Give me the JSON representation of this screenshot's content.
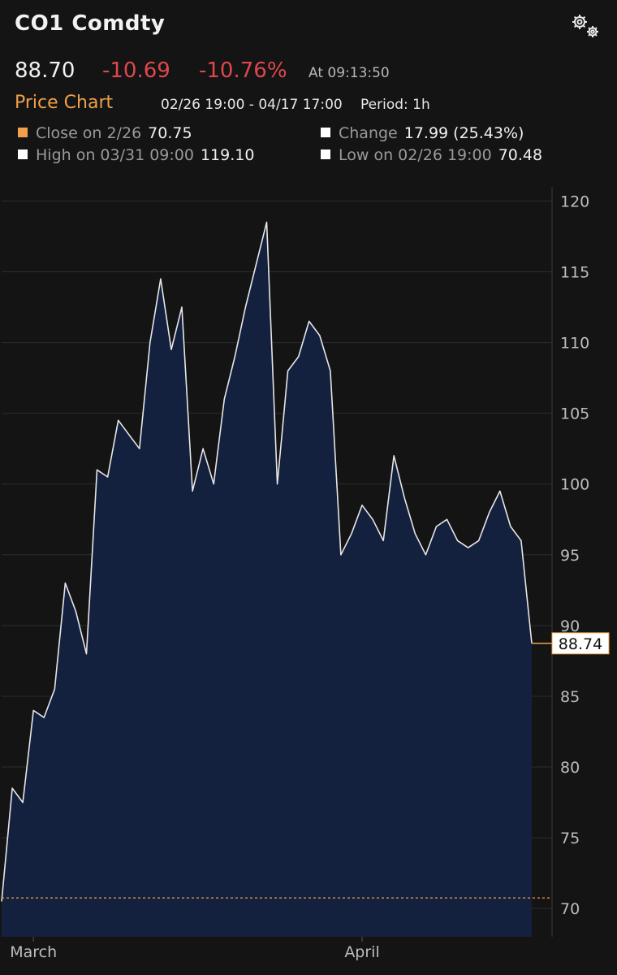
{
  "header": {
    "ticker": "CO1 Comdty",
    "last_price": "88.70",
    "net_change": "-10.69",
    "pct_change": "-10.76%",
    "time": "At 09:13:50",
    "settings_icon": "gear-icon"
  },
  "chart_header": {
    "title": "Price Chart",
    "range": "02/26 19:00 - 04/17 17:00",
    "period": "Period: 1h"
  },
  "stats": {
    "close_label": "Close on 2/26",
    "close_value": "70.75",
    "change_label": "Change",
    "change_value": "17.99 (25.43%)",
    "high_label": "High on 03/31 09:00",
    "high_value": "119.10",
    "low_label": "Low on 02/26 19:00",
    "low_value": "70.48"
  },
  "colors": {
    "accent": "#f0a04a",
    "negative": "#e0474c",
    "area_fill": "#13213f",
    "line": "#e6e6e6",
    "background": "#141414"
  },
  "chart_data": {
    "type": "area",
    "title": "",
    "xlabel": "",
    "ylabel": "",
    "ylim": [
      68,
      121
    ],
    "yticks": [
      70,
      75,
      80,
      85,
      90,
      95,
      100,
      105,
      110,
      115,
      120
    ],
    "x_range": [
      "2026-02-26",
      "2026-04-17"
    ],
    "xticks": [
      {
        "label": "March",
        "x": "2026-03-01"
      },
      {
        "label": "April",
        "x": "2026-04-01"
      }
    ],
    "grid": true,
    "reference_line": {
      "label": "Close on 2/26",
      "value": 70.75
    },
    "last_value_label": "88.74",
    "last_value": 88.74,
    "series": [
      {
        "x": [
          "2026-02-26",
          "2026-02-27",
          "2026-02-28",
          "2026-03-01",
          "2026-03-02",
          "2026-03-03",
          "2026-03-04",
          "2026-03-05",
          "2026-03-06",
          "2026-03-07",
          "2026-03-08",
          "2026-03-09",
          "2026-03-10",
          "2026-03-11",
          "2026-03-12",
          "2026-03-13",
          "2026-03-14",
          "2026-03-15",
          "2026-03-16",
          "2026-03-17",
          "2026-03-18",
          "2026-03-19",
          "2026-03-20",
          "2026-03-21",
          "2026-03-22",
          "2026-03-23",
          "2026-03-24",
          "2026-03-25",
          "2026-03-26",
          "2026-03-27",
          "2026-03-28",
          "2026-03-29",
          "2026-03-30",
          "2026-03-31",
          "2026-04-01",
          "2026-04-02",
          "2026-04-03",
          "2026-04-04",
          "2026-04-05",
          "2026-04-06",
          "2026-04-07",
          "2026-04-08",
          "2026-04-09",
          "2026-04-10",
          "2026-04-11",
          "2026-04-12",
          "2026-04-13",
          "2026-04-14",
          "2026-04-15",
          "2026-04-16",
          "2026-04-17"
        ],
        "values": [
          70.5,
          78.5,
          77.5,
          84.0,
          83.5,
          85.5,
          93.0,
          91.0,
          88.0,
          101.0,
          100.5,
          104.5,
          103.5,
          102.5,
          110.0,
          114.5,
          109.5,
          112.5,
          99.5,
          102.5,
          100.0,
          106.0,
          109.0,
          112.5,
          115.5,
          118.5,
          100.0,
          108.0,
          109.0,
          111.5,
          110.5,
          108.0,
          95.0,
          96.5,
          98.5,
          97.5,
          96.0,
          102.0,
          99.0,
          96.5,
          95.0,
          97.0,
          97.5,
          96.0,
          95.5,
          96.0,
          98.0,
          99.5,
          97.0,
          96.0,
          88.74
        ]
      }
    ]
  }
}
